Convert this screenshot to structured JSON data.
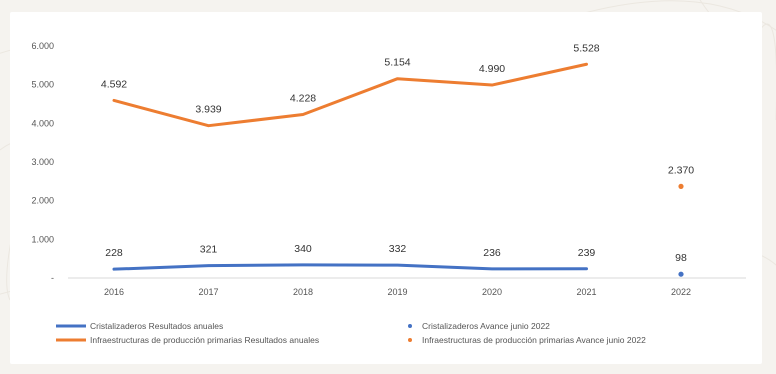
{
  "chart_data": {
    "type": "line",
    "title": "",
    "xlabel": "",
    "ylabel": "",
    "categories": [
      "2016",
      "2017",
      "2018",
      "2019",
      "2020",
      "2021",
      "2022"
    ],
    "y_ticks": [
      "-",
      "1.000",
      "2.000",
      "3.000",
      "4.000",
      "5.000",
      "6.000"
    ],
    "ylim": [
      0,
      6000
    ],
    "grid": false,
    "legend_position": "bottom",
    "series": [
      {
        "name": "Cristalizaderos Resultados anuales",
        "style": "line",
        "color": "#4472c4",
        "x": [
          "2016",
          "2017",
          "2018",
          "2019",
          "2020",
          "2021"
        ],
        "values": [
          228,
          321,
          340,
          332,
          236,
          239
        ],
        "labels": [
          "228",
          "321",
          "340",
          "332",
          "236",
          "239"
        ]
      },
      {
        "name": "Infraestructuras de producción primarias Resultados anuales",
        "style": "line",
        "color": "#ed7d31",
        "x": [
          "2016",
          "2017",
          "2018",
          "2019",
          "2020",
          "2021"
        ],
        "values": [
          4592,
          3939,
          4228,
          5154,
          4990,
          5528
        ],
        "labels": [
          "4.592",
          "3.939",
          "4.228",
          "5.154",
          "4.990",
          "5.528"
        ]
      },
      {
        "name": "Cristalizaderos Avance junio 2022",
        "style": "point",
        "color": "#4472c4",
        "x": [
          "2022"
        ],
        "values": [
          98
        ],
        "labels": [
          "98"
        ]
      },
      {
        "name": "Infraestructuras de producción primarias Avance junio 2022",
        "style": "point",
        "color": "#ed7d31",
        "x": [
          "2022"
        ],
        "values": [
          2370
        ],
        "labels": [
          "2.370"
        ]
      }
    ]
  }
}
